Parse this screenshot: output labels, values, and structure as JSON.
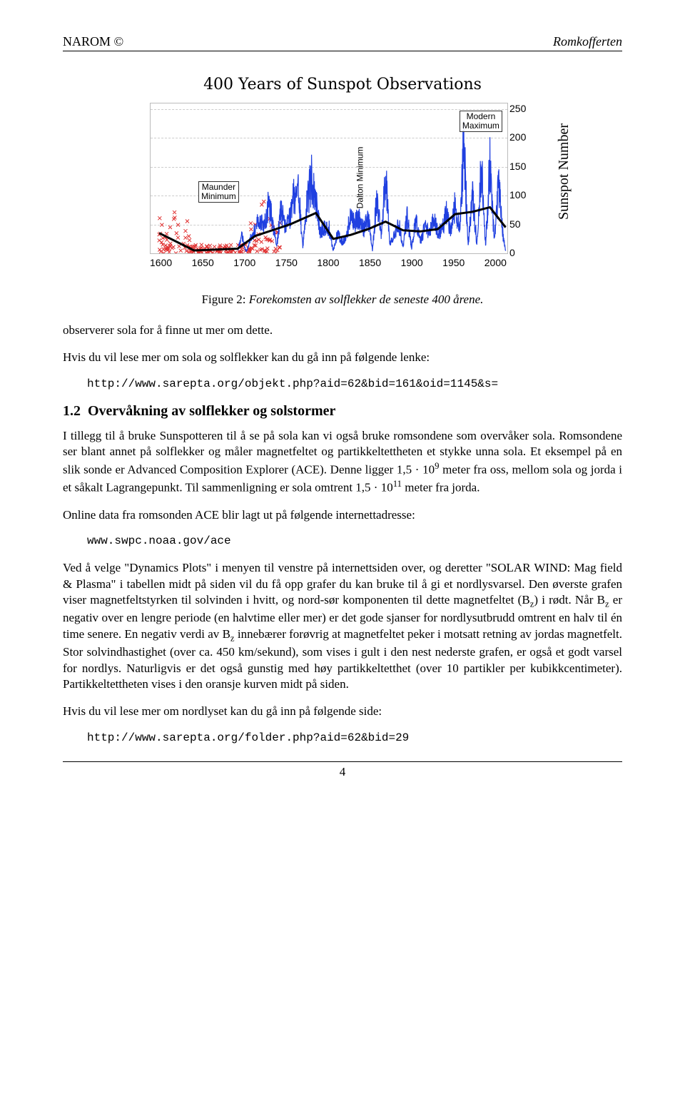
{
  "header": {
    "left": "NAROM ©",
    "right": "Romkofferten"
  },
  "chart": {
    "type": "line+scatter",
    "title": "400 Years of Sunspot Observations",
    "ylabel": "Sunspot Number",
    "xlim": [
      1600,
      2010
    ],
    "ylim": [
      0,
      260
    ],
    "xticks": [
      1600,
      1650,
      1700,
      1750,
      1800,
      1850,
      1900,
      1950,
      2000
    ],
    "yticks": [
      0,
      50,
      100,
      150,
      200,
      250
    ],
    "grid_color": "#cccccc",
    "background_color": "#ffffff",
    "annotations": {
      "maunder": "Maunder\nMinimum",
      "dalton": "Dalton\nMinimum",
      "modern": "Modern\nMaximum"
    },
    "series": {
      "scatter_color_hex": "#e03030",
      "scatter_marker": "x",
      "scatter_xrange": [
        1610,
        1750
      ],
      "scatter_yrange": [
        0,
        100
      ],
      "scatter_point_count": 180,
      "line_color_hex": "#2040e0",
      "line_width": 1.2,
      "smoothed_color_hex": "#000000",
      "smoothed_width": 3,
      "line_years": [
        1700,
        1705,
        1710,
        1715,
        1720,
        1725,
        1730,
        1735,
        1740,
        1745,
        1750,
        1755,
        1760,
        1765,
        1770,
        1775,
        1780,
        1785,
        1790,
        1795,
        1800,
        1805,
        1810,
        1815,
        1820,
        1825,
        1830,
        1835,
        1840,
        1845,
        1850,
        1855,
        1860,
        1865,
        1870,
        1875,
        1880,
        1885,
        1890,
        1895,
        1900,
        1905,
        1910,
        1915,
        1920,
        1925,
        1930,
        1935,
        1940,
        1945,
        1950,
        1955,
        1960,
        1965,
        1970,
        1975,
        1980,
        1985,
        1990,
        1995,
        2000,
        2005,
        2008
      ],
      "line_values": [
        5,
        30,
        2,
        25,
        40,
        60,
        45,
        80,
        60,
        10,
        80,
        45,
        60,
        100,
        105,
        10,
        90,
        130,
        90,
        40,
        45,
        45,
        5,
        35,
        20,
        25,
        70,
        55,
        60,
        40,
        65,
        5,
        95,
        30,
        140,
        15,
        30,
        55,
        10,
        65,
        10,
        60,
        20,
        45,
        35,
        65,
        35,
        40,
        70,
        35,
        85,
        40,
        190,
        15,
        105,
        15,
        155,
        15,
        155,
        20,
        120,
        30,
        5
      ],
      "smoothed_years": [
        1610,
        1650,
        1700,
        1720,
        1760,
        1790,
        1810,
        1830,
        1850,
        1870,
        1890,
        1910,
        1930,
        1950,
        1970,
        1990,
        2008
      ],
      "smoothed_values": [
        35,
        5,
        8,
        30,
        50,
        70,
        25,
        32,
        42,
        55,
        40,
        38,
        42,
        68,
        72,
        80,
        45
      ]
    }
  },
  "figure_caption": {
    "label": "Figure 2:",
    "text": "Forekomsten av solflekker de seneste 400 årene."
  },
  "para1": "observerer sola for å finne ut mer om dette.",
  "para2": "Hvis du vil lese mer om sola og solflekker kan du gå inn på følgende lenke:",
  "url1": "http://www.sarepta.org/objekt.php?aid=62&bid=161&oid=1145&s=",
  "section": {
    "num": "1.2",
    "title": "Overvåkning av solflekker og solstormer"
  },
  "para3_a": "I tillegg til å bruke Sunspotteren til å se på sola kan vi også bruke romsondene som overvåker sola. Romsondene ser blant annet på solflekker og måler magnetfeltet og partikkeltettheten et stykke unna sola. Et eksempel på en slik sonde er Advanced Composition Explorer (ACE). Denne ligger 1,5 · 10",
  "para3_b": " meter fra oss, mellom sola og jorda i et såkalt Lagrangepunkt. Til sammenligning er sola omtrent 1,5 · 10",
  "para3_c": " meter fra jorda.",
  "exp1": "9",
  "exp2": "11",
  "para4": "Online data fra romsonden ACE blir lagt ut på følgende internettadresse:",
  "url2": "www.swpc.noaa.gov/ace",
  "para5_a": "Ved å velge \"Dynamics Plots\" i menyen til venstre på internettsiden over, og deretter \"SOLAR WIND: Mag field & Plasma\" i tabellen midt på siden vil du få opp grafer du kan bruke til å gi et nordlysvarsel. Den øverste grafen viser magnetfeltstyrken til solvinden i hvitt, og nord-sør komponenten til dette magnetfeltet (B",
  "para5_b": ") i rødt. Når B",
  "para5_c": " er negativ over en lengre periode (en halvtime eller mer) er det gode sjanser for nordlysutbrudd omtrent en halv til én time senere. En negativ verdi av B",
  "para5_d": " innebærer forøvrig at magnetfeltet peker i motsatt retning av jordas magnetfelt. Stor solvindhastighet (over ca. 450 km/sekund), som vises i gult i den nest nederste grafen, er også et godt varsel for nordlys. Naturligvis er det også gunstig med høy partikkeltetthet (over 10 partikler per kubikkcentimeter). Partikkeltettheten vises i den oransje kurven midt på siden.",
  "sub_z": "z",
  "para6": "Hvis du vil lese mer om nordlyset kan du gå inn på følgende side:",
  "url3": "http://www.sarepta.org/folder.php?aid=62&bid=29",
  "page_number": "4"
}
